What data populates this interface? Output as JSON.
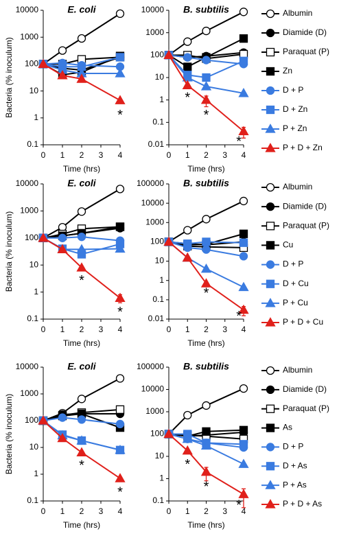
{
  "chart_data": [
    {
      "type": "line",
      "title": "E. coli",
      "xlabel": "Time (hrs)",
      "ylabel": "Bacteria (% inoculum)",
      "log": true,
      "x": [
        0,
        1,
        2,
        4
      ],
      "xlim": [
        0,
        4
      ],
      "xticks": [
        0,
        1,
        2,
        3,
        4
      ],
      "ylim": [
        0.1,
        10000
      ],
      "yticks": [
        0.1,
        1,
        10,
        100,
        1000,
        10000
      ],
      "series": [
        {
          "color": "#000000",
          "marker": "circle",
          "filled": false,
          "values": [
            100,
            320,
            900,
            7500
          ]
        },
        {
          "color": "#000000",
          "marker": "circle",
          "filled": true,
          "values": [
            100,
            70,
            60,
            180
          ]
        },
        {
          "color": "#000000",
          "marker": "square",
          "filled": false,
          "values": [
            100,
            100,
            150,
            180
          ]
        },
        {
          "color": "#000000",
          "marker": "square",
          "filled": true,
          "values": [
            100,
            40,
            50,
            200
          ]
        },
        {
          "color": "#3a7be0",
          "marker": "circle",
          "filled": true,
          "values": [
            100,
            110,
            90,
            80
          ]
        },
        {
          "color": "#3a7be0",
          "marker": "square",
          "filled": true,
          "values": [
            100,
            80,
            80,
            180
          ]
        },
        {
          "color": "#3a7be0",
          "marker": "triangle",
          "filled": true,
          "values": [
            100,
            60,
            45,
            45
          ]
        },
        {
          "color": "#e0201b",
          "marker": "triangle",
          "filled": true,
          "values": [
            100,
            38,
            28,
            4.5
          ]
        }
      ],
      "annotations": [
        {
          "text": "*",
          "x": 4,
          "y": 1.2
        }
      ]
    },
    {
      "type": "line",
      "title": "B. subtilis",
      "xlabel": "Time (hrs)",
      "log": true,
      "legend": "right",
      "x": [
        0,
        1,
        2,
        4
      ],
      "xlim": [
        0,
        4
      ],
      "xticks": [
        0,
        1,
        2,
        3,
        4
      ],
      "ylim": [
        0.01,
        10000
      ],
      "yticks": [
        0.01,
        0.1,
        1,
        10,
        100,
        1000,
        10000
      ],
      "series": [
        {
          "name": "Albumin",
          "color": "#000000",
          "marker": "circle",
          "filled": false,
          "values": [
            100,
            400,
            1200,
            8500
          ]
        },
        {
          "name": "Diamide (D)",
          "color": "#000000",
          "marker": "circle",
          "filled": true,
          "values": [
            100,
            80,
            90,
            130
          ]
        },
        {
          "name": "Paraquat (P)",
          "color": "#000000",
          "marker": "square",
          "filled": false,
          "values": [
            100,
            100,
            70,
            110
          ]
        },
        {
          "name": "Zn",
          "color": "#000000",
          "marker": "square",
          "filled": true,
          "values": [
            100,
            30,
            80,
            550
          ]
        },
        {
          "name": "D + P",
          "color": "#3a7be0",
          "marker": "circle",
          "filled": true,
          "values": [
            100,
            80,
            60,
            40
          ]
        },
        {
          "name": "D + Zn",
          "color": "#3a7be0",
          "marker": "square",
          "filled": true,
          "values": [
            100,
            13,
            10,
            55
          ]
        },
        {
          "name": "P + Zn",
          "color": "#3a7be0",
          "marker": "triangle",
          "filled": true,
          "values": [
            100,
            10,
            4,
            2
          ]
        },
        {
          "name": "P + D + Zn",
          "color": "#e0201b",
          "marker": "triangle",
          "filled": true,
          "values": [
            100,
            4.5,
            1,
            0.04
          ],
          "errors": [
            null,
            null,
            0.5,
            0.02
          ]
        }
      ],
      "annotations": [
        {
          "text": "*",
          "x": 1,
          "y": 1.2
        },
        {
          "text": "*",
          "x": 2,
          "y": 0.2
        },
        {
          "text": "*",
          "x": 3.75,
          "y": 0.013
        }
      ]
    },
    {
      "type": "line",
      "title": "E. coli",
      "xlabel": "Time (hrs)",
      "ylabel": "Bacteria (% inoculum)",
      "log": true,
      "x": [
        0,
        1,
        2,
        4
      ],
      "xlim": [
        0,
        4
      ],
      "xticks": [
        0,
        1,
        2,
        3,
        4
      ],
      "ylim": [
        0.1,
        10000
      ],
      "yticks": [
        0.1,
        1,
        10,
        100,
        1000,
        10000
      ],
      "series": [
        {
          "color": "#000000",
          "marker": "circle",
          "filled": false,
          "values": [
            100,
            250,
            950,
            6500
          ]
        },
        {
          "color": "#000000",
          "marker": "circle",
          "filled": true,
          "values": [
            100,
            120,
            150,
            230
          ]
        },
        {
          "color": "#000000",
          "marker": "square",
          "filled": false,
          "values": [
            100,
            140,
            220,
            260
          ]
        },
        {
          "color": "#000000",
          "marker": "square",
          "filled": true,
          "values": [
            100,
            120,
            150,
            260
          ]
        },
        {
          "color": "#3a7be0",
          "marker": "circle",
          "filled": true,
          "values": [
            100,
            100,
            110,
            80
          ]
        },
        {
          "color": "#3a7be0",
          "marker": "square",
          "filled": true,
          "values": [
            100,
            40,
            25,
            60
          ]
        },
        {
          "color": "#3a7be0",
          "marker": "triangle",
          "filled": true,
          "values": [
            100,
            38,
            38,
            40
          ]
        },
        {
          "color": "#e0201b",
          "marker": "triangle",
          "filled": true,
          "values": [
            100,
            38,
            8,
            0.6
          ],
          "errors": [
            null,
            null,
            null,
            0.2
          ]
        }
      ],
      "annotations": [
        {
          "text": "*",
          "x": 2,
          "y": 2.5
        },
        {
          "text": "*",
          "x": 4,
          "y": 0.17
        }
      ]
    },
    {
      "type": "line",
      "title": "B. subtilis",
      "xlabel": "Time (hrs)",
      "log": true,
      "legend": "right",
      "x": [
        0,
        1,
        2,
        4
      ],
      "xlim": [
        0,
        4
      ],
      "xticks": [
        0,
        1,
        2,
        3,
        4
      ],
      "ylim": [
        0.01,
        100000
      ],
      "yticks": [
        0.01,
        0.1,
        1,
        10,
        100,
        1000,
        10000,
        100000
      ],
      "series": [
        {
          "name": "Albumin",
          "color": "#000000",
          "marker": "circle",
          "filled": false,
          "values": [
            100,
            400,
            1500,
            13000
          ]
        },
        {
          "name": "Diamide (D)",
          "color": "#000000",
          "marker": "circle",
          "filled": true,
          "values": [
            100,
            80,
            70,
            100
          ]
        },
        {
          "name": "Paraquat (P)",
          "color": "#000000",
          "marker": "square",
          "filled": false,
          "values": [
            100,
            60,
            55,
            50
          ]
        },
        {
          "name": "Cu",
          "color": "#000000",
          "marker": "square",
          "filled": true,
          "values": [
            100,
            70,
            75,
            260
          ]
        },
        {
          "name": "D + P",
          "color": "#3a7be0",
          "marker": "circle",
          "filled": true,
          "values": [
            100,
            50,
            40,
            18
          ]
        },
        {
          "name": "D + Cu",
          "color": "#3a7be0",
          "marker": "square",
          "filled": true,
          "values": [
            100,
            80,
            100,
            90
          ]
        },
        {
          "name": "P + Cu",
          "color": "#3a7be0",
          "marker": "triangle",
          "filled": true,
          "values": [
            100,
            15,
            4,
            0.45
          ]
        },
        {
          "name": "P + D + Cu",
          "color": "#e0201b",
          "marker": "triangle",
          "filled": true,
          "values": [
            100,
            15,
            0.7,
            0.03
          ],
          "errors": [
            null,
            null,
            null,
            0.015
          ]
        }
      ],
      "annotations": [
        {
          "text": "*",
          "x": 2,
          "y": 0.2
        },
        {
          "text": "*",
          "x": 3.75,
          "y": 0.013
        }
      ]
    },
    {
      "type": "line",
      "title": "E. coli",
      "xlabel": "Time (hrs)",
      "ylabel": "Bacteria (% inoculum)",
      "log": true,
      "x": [
        0,
        1,
        2,
        4
      ],
      "xlim": [
        0,
        4
      ],
      "xticks": [
        0,
        1,
        2,
        3,
        4
      ],
      "ylim": [
        0.1,
        10000
      ],
      "yticks": [
        0.1,
        1,
        10,
        100,
        1000,
        10000
      ],
      "series": [
        {
          "color": "#000000",
          "marker": "circle",
          "filled": false,
          "values": [
            100,
            190,
            650,
            3800
          ]
        },
        {
          "color": "#000000",
          "marker": "circle",
          "filled": true,
          "values": [
            100,
            170,
            180,
            180
          ]
        },
        {
          "color": "#000000",
          "marker": "square",
          "filled": false,
          "values": [
            100,
            160,
            200,
            260
          ]
        },
        {
          "color": "#000000",
          "marker": "square",
          "filled": true,
          "values": [
            100,
            150,
            180,
            55
          ]
        },
        {
          "color": "#3a7be0",
          "marker": "circle",
          "filled": true,
          "values": [
            100,
            130,
            110,
            75
          ]
        },
        {
          "color": "#3a7be0",
          "marker": "square",
          "filled": true,
          "values": [
            100,
            30,
            18,
            8
          ]
        },
        {
          "color": "#3a7be0",
          "marker": "triangle",
          "filled": true,
          "values": [
            100,
            28,
            18,
            8
          ]
        },
        {
          "color": "#e0201b",
          "marker": "triangle",
          "filled": true,
          "values": [
            100,
            22,
            6.5,
            0.7
          ]
        }
      ],
      "annotations": [
        {
          "text": "*",
          "x": 2,
          "y": 2
        },
        {
          "text": "*",
          "x": 4,
          "y": 0.2
        }
      ]
    },
    {
      "type": "line",
      "title": "B. subtilis",
      "xlabel": "Time (hrs)",
      "log": true,
      "legend": "right",
      "x": [
        0,
        1,
        2,
        4
      ],
      "xlim": [
        0,
        4
      ],
      "xticks": [
        0,
        1,
        2,
        3,
        4
      ],
      "ylim": [
        0.1,
        100000
      ],
      "yticks": [
        0.1,
        1,
        10,
        100,
        1000,
        10000,
        100000
      ],
      "series": [
        {
          "name": "Albumin",
          "color": "#000000",
          "marker": "circle",
          "filled": false,
          "values": [
            100,
            700,
            1900,
            11000
          ]
        },
        {
          "name": "Diamide (D)",
          "color": "#000000",
          "marker": "circle",
          "filled": true,
          "values": [
            100,
            80,
            90,
            120
          ]
        },
        {
          "name": "Paraquat (P)",
          "color": "#000000",
          "marker": "square",
          "filled": false,
          "values": [
            100,
            90,
            80,
            60
          ]
        },
        {
          "name": "As",
          "color": "#000000",
          "marker": "square",
          "filled": true,
          "values": [
            100,
            80,
            130,
            150
          ]
        },
        {
          "name": "D + P",
          "color": "#3a7be0",
          "marker": "circle",
          "filled": true,
          "values": [
            100,
            60,
            40,
            25
          ]
        },
        {
          "name": "D + As",
          "color": "#3a7be0",
          "marker": "square",
          "filled": true,
          "values": [
            100,
            100,
            40,
            35
          ]
        },
        {
          "name": "P + As",
          "color": "#3a7be0",
          "marker": "triangle",
          "filled": true,
          "values": [
            100,
            60,
            30,
            4.5
          ]
        },
        {
          "name": "P + D + As",
          "color": "#e0201b",
          "marker": "triangle",
          "filled": true,
          "values": [
            100,
            18,
            2,
            0.2
          ],
          "errors": [
            null,
            null,
            1.2,
            0.15
          ]
        }
      ],
      "annotations": [
        {
          "text": "*",
          "x": 1,
          "y": 4
        },
        {
          "text": "*",
          "x": 2,
          "y": 0.4
        },
        {
          "text": "*",
          "x": 3.75,
          "y": 0.06
        }
      ]
    }
  ]
}
